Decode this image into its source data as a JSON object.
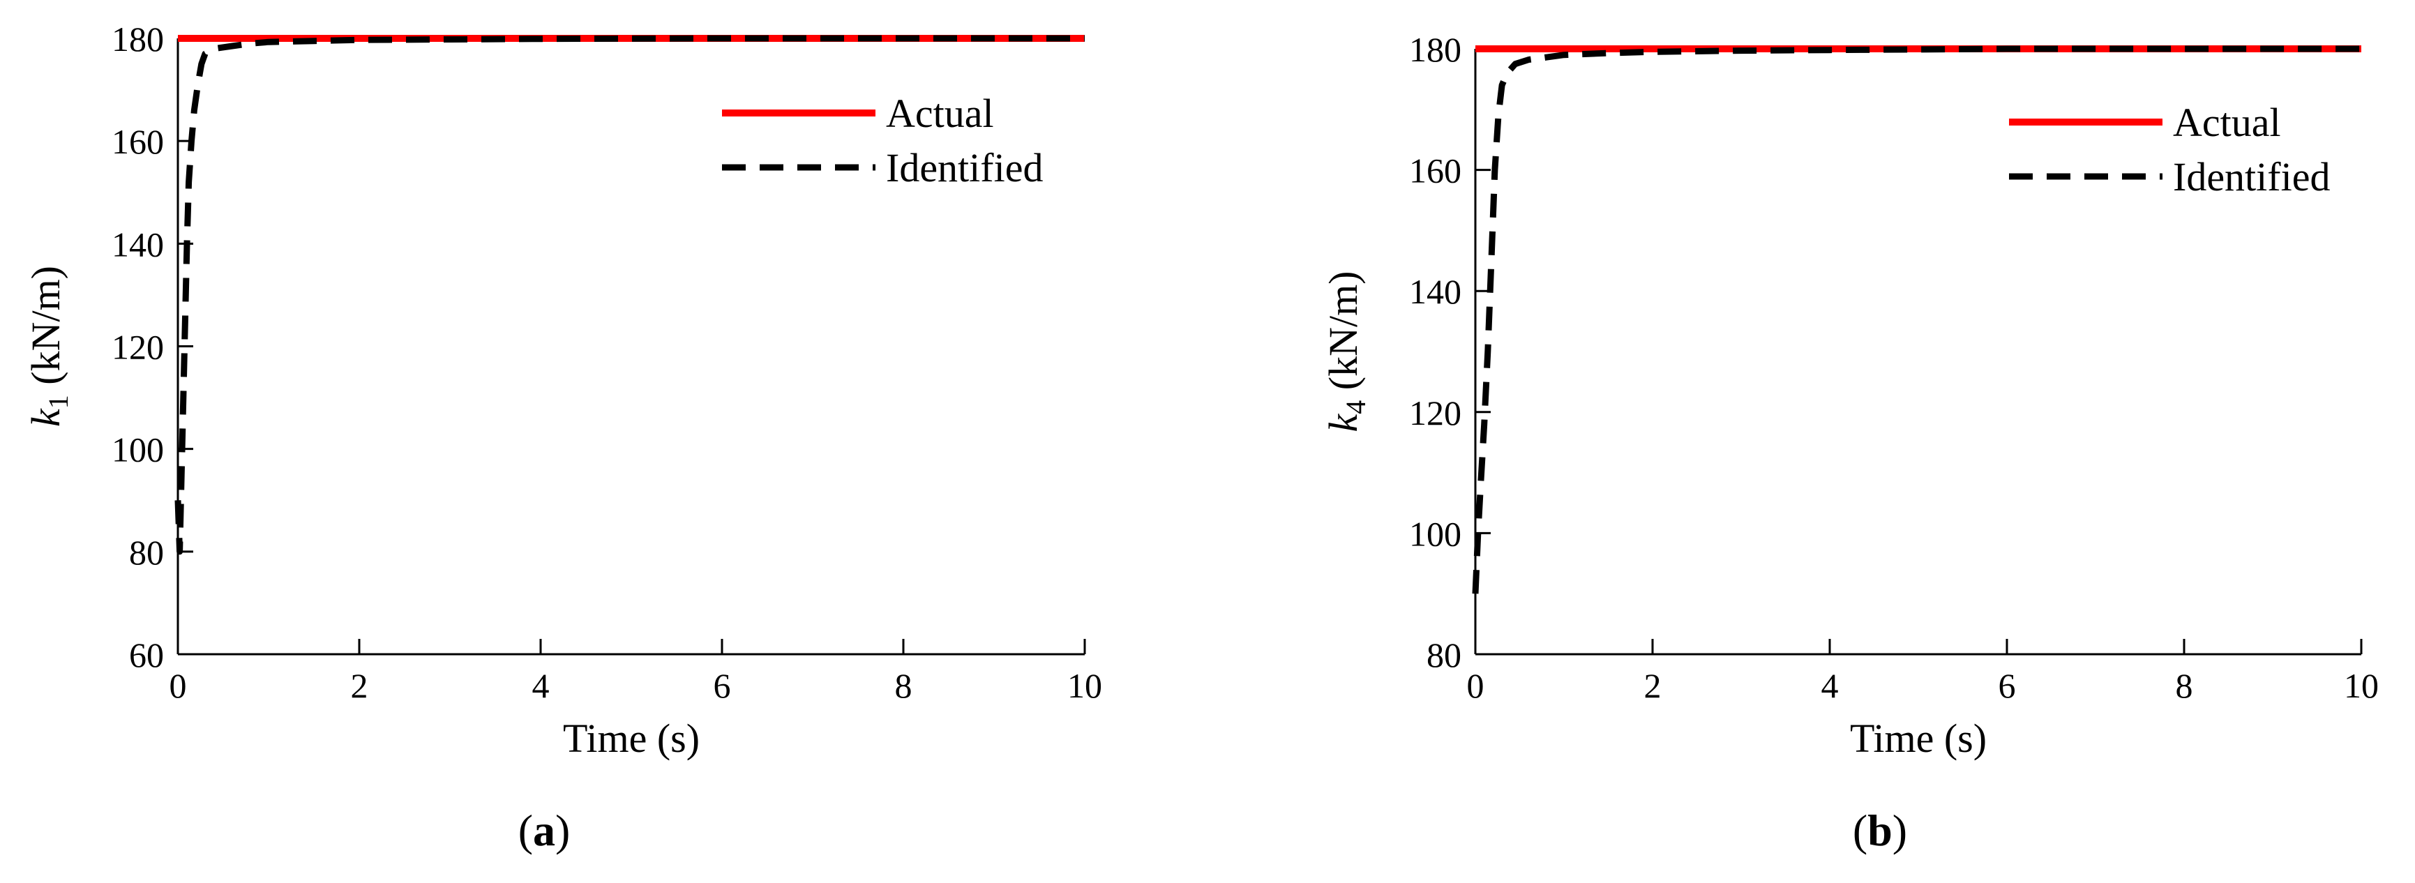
{
  "chart_data": [
    {
      "type": "line",
      "panel_label": "a",
      "xlabel": "Time (s)",
      "ylabel_symbol": "k",
      "ylabel_subscript": "1",
      "ylabel_unit": "(kN/m)",
      "xlim": [
        0,
        10
      ],
      "ylim": [
        60,
        180
      ],
      "xticks": [
        0,
        2,
        4,
        6,
        8,
        10
      ],
      "yticks": [
        60,
        80,
        100,
        120,
        140,
        160,
        180
      ],
      "grid": false,
      "legend_position": "top-right",
      "series": [
        {
          "name": "Actual",
          "color": "#ff0000",
          "style": "solid",
          "x": [
            0,
            10
          ],
          "y": [
            180,
            180
          ]
        },
        {
          "name": "Identified",
          "color": "#000000",
          "style": "dashed",
          "x": [
            0,
            0.02,
            0.04,
            0.06,
            0.08,
            0.1,
            0.12,
            0.15,
            0.18,
            0.22,
            0.26,
            0.3,
            0.4,
            0.6,
            0.8,
            1,
            1.5,
            2,
            3,
            4,
            6,
            8,
            10
          ],
          "y": [
            90,
            80,
            95,
            110,
            125,
            140,
            152,
            160,
            166,
            171,
            175,
            177,
            178,
            178.5,
            179,
            179.3,
            179.5,
            179.7,
            179.8,
            179.9,
            180,
            180,
            180
          ]
        }
      ]
    },
    {
      "type": "line",
      "panel_label": "b",
      "xlabel": "Time (s)",
      "ylabel_symbol": "k",
      "ylabel_subscript": "4",
      "ylabel_unit": "(kN/m)",
      "xlim": [
        0,
        10
      ],
      "ylim": [
        80,
        180
      ],
      "xticks": [
        0,
        2,
        4,
        6,
        8,
        10
      ],
      "yticks": [
        80,
        100,
        120,
        140,
        160,
        180
      ],
      "grid": false,
      "legend_position": "top-right",
      "series": [
        {
          "name": "Actual",
          "color": "#ff0000",
          "style": "solid",
          "x": [
            0,
            10
          ],
          "y": [
            180,
            180
          ]
        },
        {
          "name": "Identified",
          "color": "#000000",
          "style": "dashed",
          "x": [
            0,
            0.03,
            0.06,
            0.1,
            0.14,
            0.18,
            0.22,
            0.26,
            0.3,
            0.36,
            0.45,
            0.6,
            0.8,
            1,
            1.5,
            2,
            3,
            4,
            6,
            8,
            10
          ],
          "y": [
            90,
            100,
            108,
            118,
            130,
            145,
            160,
            169,
            174,
            176,
            177.5,
            178.2,
            178.6,
            179,
            179.3,
            179.5,
            179.7,
            179.8,
            180,
            180,
            180
          ]
        }
      ]
    }
  ]
}
